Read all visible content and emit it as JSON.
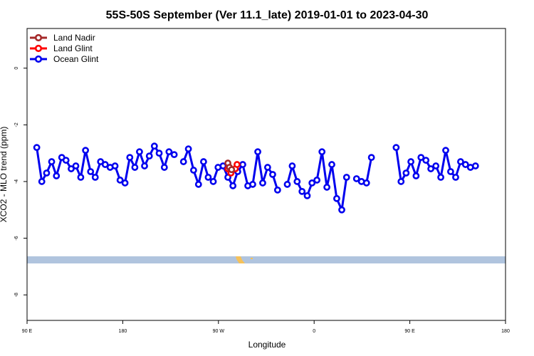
{
  "chart_data": {
    "type": "line",
    "title": "55S-50S September (Ver 11.1_late)   2019-01-01 to 2023-04-30",
    "xlabel": "Longitude",
    "ylabel": "XCO2 - MLO trend (ppm)",
    "xlim": [
      90,
      450
    ],
    "ylim": [
      -8.9,
      1.4
    ],
    "x_ticks": [
      {
        "value": 90,
        "label": "90 E"
      },
      {
        "value": 162,
        "label": "180"
      },
      {
        "value": 234,
        "label": "90 W"
      },
      {
        "value": 306,
        "label": "0"
      },
      {
        "value": 378,
        "label": "90 E"
      },
      {
        "value": 450,
        "label": "180"
      }
    ],
    "y_ticks": [
      {
        "value": 0,
        "label": "0"
      },
      {
        "value": -2,
        "label": "-2"
      },
      {
        "value": -4,
        "label": "-4"
      },
      {
        "value": -6,
        "label": "-6"
      },
      {
        "value": -8,
        "label": "-8"
      }
    ],
    "legend": {
      "position": "top-left"
    },
    "colors": {
      "land_nadir": "#a52a2a",
      "land_glint": "#ff0000",
      "ocean_glint": "#0000ee",
      "land_band": "#b0c4de",
      "land_patch": "#f5c15a"
    },
    "series": [
      {
        "name": "Land Nadir",
        "color": "#a52a2a",
        "segments": [
          [
            [
              241.1,
              -3.35
            ],
            [
              242.3,
              -3.5
            ],
            [
              243.9,
              -3.58
            ]
          ]
        ]
      },
      {
        "name": "Land Glint",
        "color": "#ff0000",
        "segments": [
          [
            [
              241.1,
              -3.55
            ],
            [
              243.4,
              -3.7
            ],
            [
              246.7,
              -3.55
            ],
            [
              248.0,
              -3.4
            ]
          ]
        ]
      },
      {
        "name": "Ocean Glint",
        "color": "#0000ee",
        "segments": [
          [
            [
              97.3,
              -2.8
            ],
            [
              101.1,
              -4.0
            ],
            [
              104.7,
              -3.7
            ],
            [
              108.5,
              -3.3
            ],
            [
              112.1,
              -3.8
            ],
            [
              116.1,
              -3.15
            ],
            [
              119.3,
              -3.25
            ],
            [
              123.2,
              -3.55
            ],
            [
              126.7,
              -3.45
            ],
            [
              130.4,
              -3.85
            ],
            [
              134.0,
              -2.9
            ],
            [
              137.8,
              -3.65
            ],
            [
              141.3,
              -3.85
            ],
            [
              145.3,
              -3.3
            ],
            [
              148.8,
              -3.4
            ],
            [
              152.5,
              -3.5
            ],
            [
              156.2,
              -3.45
            ],
            [
              160.0,
              -3.95
            ],
            [
              163.7,
              -4.05
            ],
            [
              167.3,
              -3.15
            ],
            [
              171.1,
              -3.5
            ],
            [
              174.6,
              -2.95
            ],
            [
              178.4,
              -3.45
            ],
            [
              182.0,
              -3.1
            ],
            [
              185.8,
              -2.75
            ],
            [
              189.4,
              -3.0
            ],
            [
              193.3,
              -3.5
            ],
            [
              196.8,
              -2.95
            ],
            [
              200.7,
              -3.05
            ]
          ],
          [
            [
              207.7,
              -3.3
            ],
            [
              211.4,
              -2.85
            ],
            [
              215.3,
              -3.6
            ],
            [
              219.0,
              -4.1
            ],
            [
              222.8,
              -3.3
            ],
            [
              226.3,
              -3.85
            ],
            [
              230.1,
              -4.0
            ],
            [
              233.7,
              -3.5
            ],
            [
              237.5,
              -3.45
            ],
            [
              241.1,
              -3.85
            ],
            [
              244.9,
              -4.15
            ],
            [
              248.5,
              -3.65
            ],
            [
              252.3,
              -3.4
            ],
            [
              256.1,
              -4.15
            ],
            [
              259.8,
              -4.1
            ],
            [
              263.6,
              -2.95
            ],
            [
              267.3,
              -4.05
            ],
            [
              271.0,
              -3.5
            ],
            [
              274.8,
              -3.75
            ],
            [
              278.5,
              -4.3
            ]
          ],
          [
            [
              285.8,
              -4.1
            ],
            [
              289.5,
              -3.45
            ],
            [
              293.2,
              -4.0
            ],
            [
              296.9,
              -4.35
            ],
            [
              300.8,
              -4.5
            ],
            [
              304.4,
              -4.05
            ],
            [
              308.1,
              -3.95
            ],
            [
              311.9,
              -2.95
            ],
            [
              315.6,
              -4.2
            ],
            [
              319.3,
              -3.4
            ],
            [
              323.0,
              -4.6
            ],
            [
              326.8,
              -5.0
            ],
            [
              330.4,
              -3.85
            ]
          ],
          [
            [
              337.9,
              -3.9
            ],
            [
              341.6,
              -4.0
            ],
            [
              345.4,
              -4.05
            ],
            [
              349.1,
              -3.15
            ]
          ],
          [
            [
              367.7,
              -2.8
            ],
            [
              371.4,
              -4.0
            ],
            [
              375.2,
              -3.7
            ],
            [
              378.8,
              -3.3
            ],
            [
              382.7,
              -3.8
            ],
            [
              386.4,
              -3.15
            ],
            [
              390.1,
              -3.25
            ],
            [
              393.8,
              -3.55
            ],
            [
              397.6,
              -3.45
            ],
            [
              401.3,
              -3.85
            ],
            [
              405.0,
              -2.9
            ],
            [
              408.7,
              -3.65
            ],
            [
              412.5,
              -3.85
            ],
            [
              416.2,
              -3.3
            ],
            [
              419.9,
              -3.4
            ],
            [
              423.6,
              -3.5
            ],
            [
              427.4,
              -3.45
            ]
          ]
        ]
      }
    ]
  }
}
